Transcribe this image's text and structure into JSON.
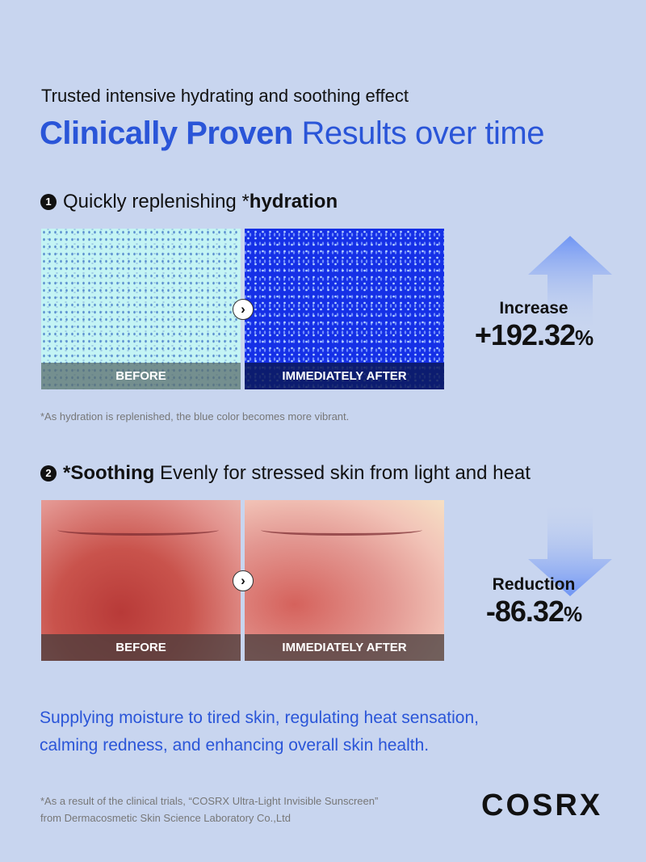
{
  "subtitle": "Trusted intensive hydrating and soothing effect",
  "title": {
    "bold": "Clinically Proven",
    "rest": " Results over time"
  },
  "section1": {
    "number": "1",
    "text": "Quickly replenishing *",
    "bold": "hydration",
    "before": "BEFORE",
    "after": "IMMEDIATELY AFTER",
    "stat_label": "Increase",
    "stat_value": "+192.32",
    "stat_unit": "%",
    "note": "*As hydration is replenished, the blue color becomes more vibrant."
  },
  "section2": {
    "number": "2",
    "bold": "*Soothing",
    "text": " Evenly for stressed skin from light and heat",
    "before": "BEFORE",
    "after": "IMMEDIATELY AFTER",
    "stat_label": "Reduction",
    "stat_value": "-86.32",
    "stat_unit": "%"
  },
  "summary": {
    "line1": "Supplying moisture to tired skin, regulating heat sensation,",
    "line2": "calming redness, and enhancing overall skin health."
  },
  "footnote": {
    "line1": "*As a result of the clinical trials, “COSRX Ultra-Light Invisible Sunscreen”",
    "line2": "from Dermacosmetic Skin Science Laboratory Co.,Ltd"
  },
  "logo": "COSRX",
  "colors": {
    "background": "#c8d5ef",
    "accent": "#2a55d8",
    "arrow": "#6f95f5"
  },
  "icons": {
    "compare": "chevron-right-icon",
    "up": "arrow-up-icon",
    "down": "arrow-down-icon"
  }
}
